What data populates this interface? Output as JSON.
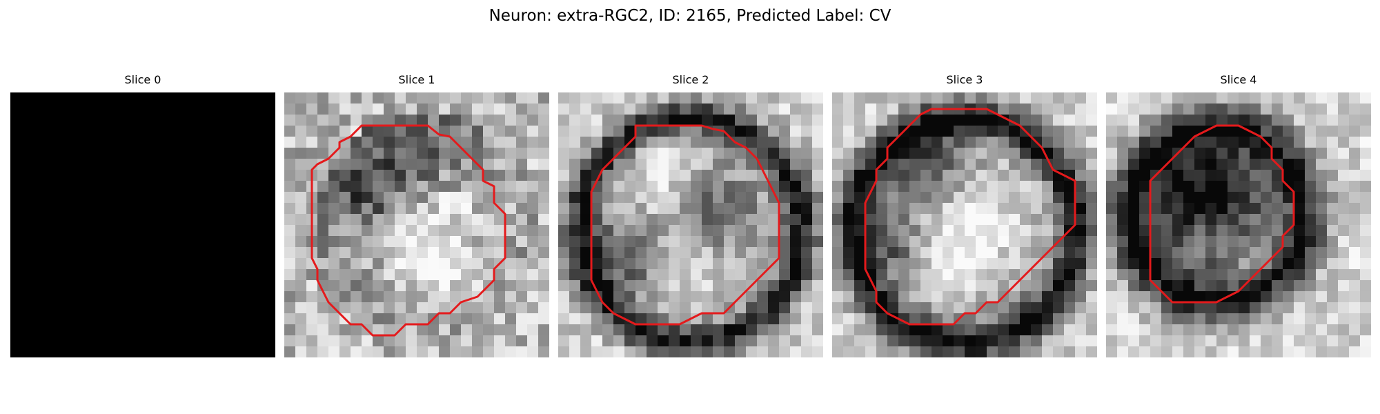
{
  "figure": {
    "title": "Neuron: extra-RGC2, ID: 2165, Predicted Label: CV"
  },
  "colors": {
    "background": "#ffffff",
    "contour": "#e41a1c",
    "blank_slice": "#000000"
  },
  "slices": [
    {
      "title": "Slice 0",
      "has_contour": false
    },
    {
      "title": "Slice 1",
      "has_contour": true
    },
    {
      "title": "Slice 2",
      "has_contour": true
    },
    {
      "title": "Slice 3",
      "has_contour": true
    },
    {
      "title": "Slice 4",
      "has_contour": true
    }
  ]
}
